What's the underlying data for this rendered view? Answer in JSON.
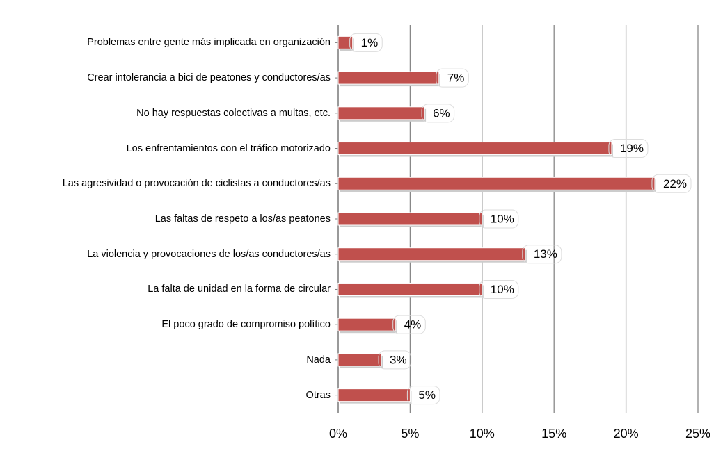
{
  "chart_data": {
    "type": "bar",
    "orientation": "horizontal",
    "categories": [
      "Problemas entre gente más implicada en organización",
      "Crear intolerancia a bici de peatones y conductores/as",
      "No hay respuestas colectivas a multas, etc.",
      "Los enfrentamientos con el tráfico motorizado",
      "Las agresividad o provocación de ciclistas a conductores/as",
      "Las faltas de respeto a los/as peatones",
      "La violencia y provocaciones de los/as conductores/as",
      "La falta de unidad en la forma de circular",
      "El poco grado de compromiso político",
      "Nada",
      "Otras"
    ],
    "values": [
      1,
      7,
      6,
      19,
      22,
      10,
      13,
      10,
      4,
      3,
      5
    ],
    "value_labels": [
      "1%",
      "7%",
      "6%",
      "19%",
      "22%",
      "10%",
      "13%",
      "10%",
      "4%",
      "3%",
      "5%"
    ],
    "color": "#c0504d",
    "xlim": [
      0,
      25
    ],
    "xticks": [
      {
        "value": 0,
        "label": "0%"
      },
      {
        "value": 5,
        "label": "5%"
      },
      {
        "value": 10,
        "label": "10%"
      },
      {
        "value": 15,
        "label": "15%"
      },
      {
        "value": 20,
        "label": "20%"
      },
      {
        "value": 25,
        "label": "25%"
      }
    ],
    "grid": true
  }
}
